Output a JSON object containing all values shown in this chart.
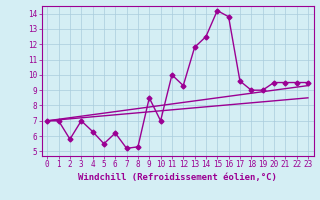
{
  "line1_x": [
    0,
    1,
    2,
    3,
    4,
    5,
    6,
    7,
    8,
    9,
    10,
    11,
    12,
    13,
    14,
    15,
    16,
    17,
    18,
    19,
    20,
    21,
    22,
    23
  ],
  "line1_y": [
    7.0,
    7.0,
    5.8,
    7.0,
    6.3,
    5.5,
    6.2,
    5.2,
    5.3,
    8.5,
    7.0,
    10.0,
    9.3,
    11.8,
    12.5,
    14.2,
    13.8,
    9.6,
    9.0,
    9.0,
    9.5,
    9.5,
    9.5,
    9.5
  ],
  "line2_x": [
    0,
    23
  ],
  "line2_y": [
    7.0,
    9.3
  ],
  "line3_x": [
    0,
    23
  ],
  "line3_y": [
    7.0,
    8.5
  ],
  "line_color": "#9b0093",
  "bg_color": "#d4eef4",
  "grid_color": "#aaccdd",
  "xlabel": "Windchill (Refroidissement éolien,°C)",
  "xlim": [
    -0.5,
    23.5
  ],
  "ylim": [
    4.7,
    14.5
  ],
  "xticks": [
    0,
    1,
    2,
    3,
    4,
    5,
    6,
    7,
    8,
    9,
    10,
    11,
    12,
    13,
    14,
    15,
    16,
    17,
    18,
    19,
    20,
    21,
    22,
    23
  ],
  "yticks": [
    5,
    6,
    7,
    8,
    9,
    10,
    11,
    12,
    13,
    14
  ],
  "marker": "D",
  "markersize": 2.5,
  "linewidth": 1.0,
  "xlabel_fontsize": 6.5,
  "tick_fontsize": 5.5,
  "tick_color": "#9b0093",
  "label_color": "#9b0093",
  "axis_color": "#9b0093"
}
